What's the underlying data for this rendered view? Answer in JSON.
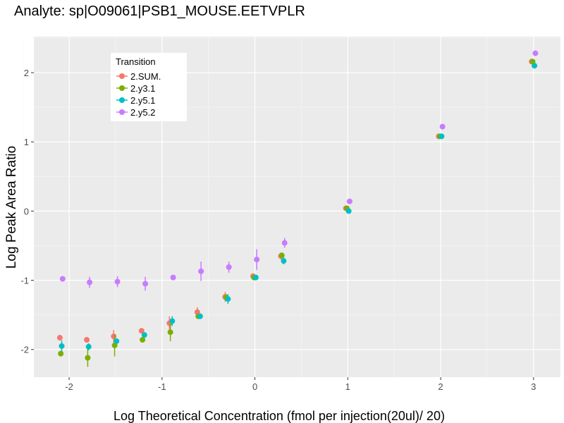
{
  "chart_data": {
    "type": "scatter",
    "title": "Analyte: sp|O09061|PSB1_MOUSE.EETVPLR",
    "xlabel": "Log Theoretical Concentration (fmol per injection(20ul)/ 20)",
    "ylabel": "Log Peak Area Ratio",
    "xlim": [
      -2.38,
      3.29
    ],
    "ylim": [
      -2.4,
      2.52
    ],
    "xticks": [
      -2,
      -1,
      0,
      1,
      2,
      3
    ],
    "yticks": [
      -2,
      -1,
      0,
      1,
      2
    ],
    "grid": true,
    "legend": {
      "title": "Transition",
      "placement": "top-left"
    },
    "series": [
      {
        "name": "2.SUM.",
        "color": "#F8766D",
        "x": [
          -2.1,
          -1.81,
          -1.52,
          -1.22,
          -0.92,
          -0.62,
          -0.32,
          -0.02,
          0.28,
          0.98,
          1.98,
          2.98
        ],
        "y": [
          -1.83,
          -1.86,
          -1.81,
          -1.73,
          -1.62,
          -1.46,
          -1.24,
          -0.94,
          -0.65,
          0.04,
          1.08,
          2.16
        ],
        "err": [
          0.03,
          0.04,
          0.09,
          0.02,
          0.1,
          0.07,
          0.07,
          0.02,
          0.05,
          0.02,
          0.02,
          0.03
        ]
      },
      {
        "name": "2.y3.1",
        "color": "#7CAE00",
        "x": [
          -2.09,
          -1.8,
          -1.51,
          -1.21,
          -0.91,
          -0.61,
          -0.31,
          -0.01,
          0.29,
          0.99,
          1.99,
          2.99
        ],
        "y": [
          -2.06,
          -2.12,
          -1.94,
          -1.86,
          -1.75,
          -1.52,
          -1.25,
          -0.96,
          -0.64,
          0.04,
          1.08,
          2.16
        ],
        "err": [
          0.04,
          0.13,
          0.16,
          0.02,
          0.13,
          0.02,
          0.05,
          0.02,
          0.04,
          0.02,
          0.02,
          0.04
        ]
      },
      {
        "name": "2.y5.1",
        "color": "#00BFC4",
        "x": [
          -2.08,
          -1.79,
          -1.49,
          -1.19,
          -0.89,
          -0.59,
          -0.29,
          0.01,
          0.31,
          1.01,
          2.01,
          3.01
        ],
        "y": [
          -1.95,
          -1.96,
          -1.88,
          -1.79,
          -1.59,
          -1.52,
          -1.27,
          -0.96,
          -0.72,
          0.0,
          1.08,
          2.1
        ],
        "err": [
          0.08,
          0.05,
          0.02,
          0.02,
          0.07,
          0.02,
          0.07,
          0.02,
          0.05,
          0.02,
          0.03,
          0.02
        ]
      },
      {
        "name": "2.y5.2",
        "color": "#C77CFF",
        "x": [
          -2.07,
          -1.78,
          -1.48,
          -1.18,
          -0.88,
          -0.58,
          -0.28,
          0.02,
          0.32,
          1.02,
          2.02,
          3.02
        ],
        "y": [
          -0.98,
          -1.03,
          -1.02,
          -1.05,
          -0.96,
          -0.87,
          -0.81,
          -0.7,
          -0.46,
          0.14,
          1.22,
          2.28
        ],
        "err": [
          0.04,
          0.08,
          0.08,
          0.1,
          0.02,
          0.14,
          0.08,
          0.15,
          0.07,
          0.03,
          0.03,
          0.04
        ]
      }
    ]
  }
}
